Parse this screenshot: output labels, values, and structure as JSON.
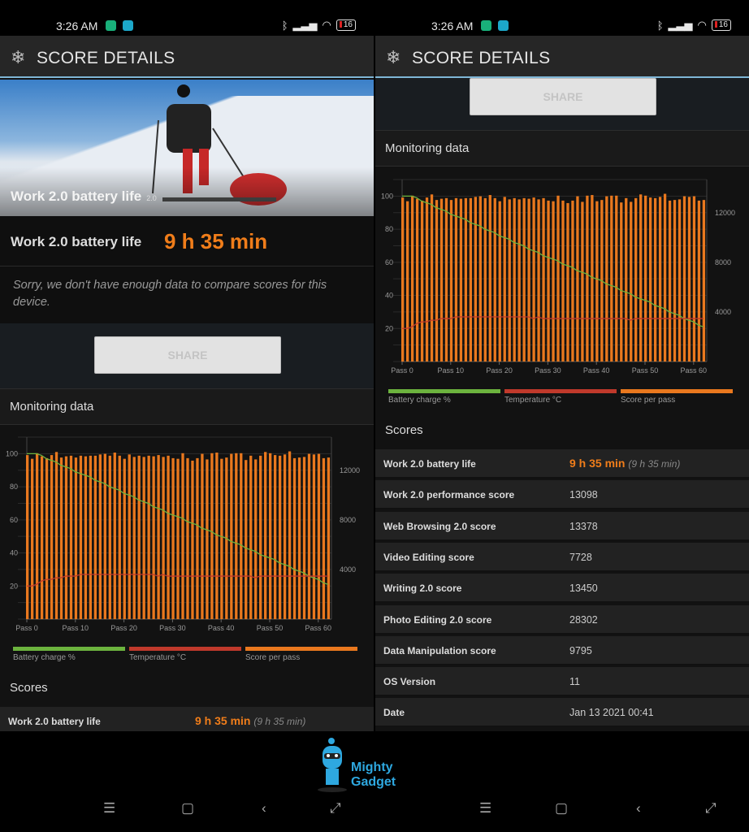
{
  "status": {
    "time": "3:26 AM",
    "battery": "16"
  },
  "header": {
    "title": "SCORE DETAILS"
  },
  "hero": {
    "title": "Work 2.0 battery life",
    "version": "2.0"
  },
  "result": {
    "label": "Work 2.0 battery life",
    "value": "9 h 35 min"
  },
  "notice": "Sorry, we don't have enough data to compare scores for this device.",
  "share_label": "SHARE",
  "monitoring_title": "Monitoring data",
  "scores_title": "Scores",
  "scores": [
    {
      "label": "Work 2.0 battery life",
      "value": "9 h 35 min",
      "detail": "(9 h 35 min)"
    },
    {
      "label": "Work 2.0 performance score",
      "value": "13098"
    },
    {
      "label": "Web Browsing 2.0 score",
      "value": "13378"
    },
    {
      "label": "Video Editing score",
      "value": "7728"
    },
    {
      "label": "Writing 2.0 score",
      "value": "13450"
    },
    {
      "label": "Photo Editing 2.0 score",
      "value": "28302"
    },
    {
      "label": "Data Manipulation score",
      "value": "9795"
    },
    {
      "label": "OS Version",
      "value": "11"
    },
    {
      "label": "Date",
      "value": "Jan 13 2021 00:41"
    }
  ],
  "logo": {
    "text": "Mighty Gadget"
  },
  "chart_data": {
    "type": "bar+line",
    "x_tick_labels": [
      "Pass 0",
      "Pass 10",
      "Pass 20",
      "Pass 30",
      "Pass 40",
      "Pass 50",
      "Pass 60"
    ],
    "left_axis": {
      "ticks": [
        20,
        40,
        60,
        80,
        100
      ],
      "range": [
        0,
        110
      ]
    },
    "right_axis": {
      "ticks": [
        4000,
        8000,
        12000
      ],
      "range": [
        0,
        14700
      ]
    },
    "grid": true,
    "legend_position": "bottom",
    "series": [
      {
        "name": "Battery charge %",
        "color": "#6cb33e",
        "axis": "left",
        "type": "line",
        "values": [
          100,
          100,
          100,
          99,
          97,
          96,
          95,
          93,
          92,
          91,
          89,
          88,
          87,
          86,
          84,
          83,
          82,
          80,
          79,
          78,
          76,
          75,
          74,
          72,
          71,
          70,
          68,
          67,
          66,
          64,
          63,
          62,
          61,
          59,
          58,
          57,
          55,
          54,
          53,
          51,
          50,
          49,
          47,
          46,
          45,
          43,
          42,
          41,
          39,
          38,
          37,
          36,
          34,
          33,
          32,
          30,
          29,
          28,
          26,
          25,
          24,
          22,
          21
        ]
      },
      {
        "name": "Temperature °C",
        "color": "#c0392b",
        "axis": "left",
        "type": "line",
        "values": [
          20,
          20,
          21,
          23,
          24,
          24,
          25,
          25,
          26,
          26,
          26,
          27,
          27,
          27,
          27,
          27,
          27,
          27,
          27,
          27,
          27,
          27,
          27,
          27,
          27,
          27,
          27,
          26,
          27,
          26,
          26,
          26,
          26,
          26,
          26,
          26,
          26,
          26,
          26,
          26,
          26,
          26,
          26,
          26,
          26,
          26,
          26,
          25,
          26,
          26,
          26,
          26,
          26,
          26,
          26,
          26,
          26,
          26,
          26,
          26,
          26,
          26,
          26
        ]
      },
      {
        "name": "Score per pass",
        "color": "#e9781e",
        "axis": "right",
        "type": "bar",
        "values": [
          13250,
          12950,
          13400,
          13150,
          13000,
          13250,
          13500,
          13050,
          13150,
          13200,
          13050,
          13200,
          13150,
          13200,
          13200,
          13300,
          13350,
          13200,
          13450,
          13200,
          12950,
          13300,
          13100,
          13200,
          13100,
          13200,
          13150,
          13250,
          13100,
          13200,
          13000,
          12950,
          13400,
          13000,
          12800,
          13000,
          13350,
          12900,
          13400,
          13450,
          12950,
          13050,
          13350,
          13400,
          13400,
          12850,
          13200,
          12900,
          13200,
          13500,
          13400,
          13250,
          13200,
          13300,
          13550,
          13000,
          13050,
          13100,
          13350,
          13300,
          13350,
          13000,
          13050
        ]
      }
    ]
  }
}
